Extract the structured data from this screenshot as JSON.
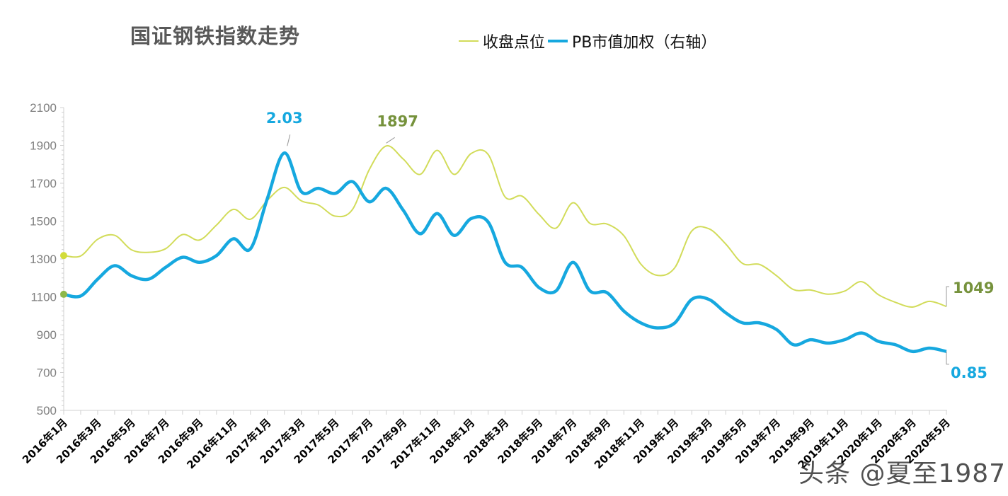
{
  "chart_data": {
    "type": "line",
    "title": "国证钢铁指数走势",
    "legend_position": "top",
    "grid": false,
    "categories": [
      "2016年1月",
      "2016年2月",
      "2016年3月",
      "2016年4月",
      "2016年5月",
      "2016年6月",
      "2016年7月",
      "2016年8月",
      "2016年9月",
      "2016年10月",
      "2016年11月",
      "2016年12月",
      "2017年1月",
      "2017年2月",
      "2017年3月",
      "2017年4月",
      "2017年5月",
      "2017年6月",
      "2017年7月",
      "2017年8月",
      "2017年9月",
      "2017年10月",
      "2017年11月",
      "2017年12月",
      "2018年1月",
      "2018年2月",
      "2018年3月",
      "2018年4月",
      "2018年5月",
      "2018年6月",
      "2018年7月",
      "2018年8月",
      "2018年9月",
      "2018年10月",
      "2018年11月",
      "2018年12月",
      "2019年1月",
      "2019年2月",
      "2019年3月",
      "2019年4月",
      "2019年5月",
      "2019年6月",
      "2019年7月",
      "2019年8月",
      "2019年9月",
      "2019年10月",
      "2019年11月",
      "2019年12月",
      "2020年1月",
      "2020年2月",
      "2020年3月",
      "2020年4月",
      "2020年5月"
    ],
    "x_tick_labels": [
      "2016年1月",
      "2016年3月",
      "2016年5月",
      "2016年7月",
      "2016年9月",
      "2016年11月",
      "2017年1月",
      "2017年3月",
      "2017年5月",
      "2017年7月",
      "2017年9月",
      "2017年11月",
      "2018年1月",
      "2018年3月",
      "2018年5月",
      "2018年7月",
      "2018年9月",
      "2018年11月",
      "2019年1月",
      "2019年3月",
      "2019年5月",
      "2019年7月",
      "2019年9月",
      "2019年11月",
      "2020年1月",
      "2020年3月",
      "2020年5月"
    ],
    "y_left": {
      "ylim": [
        500,
        2100
      ],
      "ticks": [
        500,
        700,
        900,
        1100,
        1300,
        1500,
        1700,
        1900,
        2100
      ]
    },
    "y_right": {
      "ylim": [
        0.5,
        2.3
      ],
      "visible": false
    },
    "series": [
      {
        "name": "收盘点位",
        "axis": "left",
        "color": "#d2dc5a",
        "values": [
          1318,
          1316,
          1404,
          1425,
          1348,
          1335,
          1354,
          1429,
          1400,
          1479,
          1562,
          1510,
          1610,
          1678,
          1607,
          1585,
          1526,
          1560,
          1772,
          1897,
          1828,
          1747,
          1874,
          1747,
          1857,
          1853,
          1628,
          1632,
          1535,
          1463,
          1597,
          1488,
          1485,
          1423,
          1273,
          1213,
          1254,
          1448,
          1460,
          1379,
          1276,
          1271,
          1211,
          1138,
          1136,
          1114,
          1130,
          1180,
          1111,
          1071,
          1046,
          1076,
          1049
        ]
      },
      {
        "name": "PB市值加权（右轴）",
        "axis": "right",
        "color": "#16a8df",
        "values": [
          1.19,
          1.18,
          1.28,
          1.36,
          1.3,
          1.28,
          1.35,
          1.41,
          1.38,
          1.42,
          1.52,
          1.46,
          1.76,
          2.03,
          1.8,
          1.82,
          1.79,
          1.86,
          1.74,
          1.82,
          1.69,
          1.55,
          1.67,
          1.54,
          1.64,
          1.62,
          1.38,
          1.35,
          1.23,
          1.21,
          1.38,
          1.21,
          1.2,
          1.09,
          1.02,
          0.99,
          1.02,
          1.16,
          1.16,
          1.08,
          1.02,
          1.02,
          0.98,
          0.89,
          0.92,
          0.9,
          0.92,
          0.96,
          0.91,
          0.89,
          0.85,
          0.87,
          0.85
        ]
      }
    ],
    "annotations": [
      {
        "text": "2.03",
        "series": 1,
        "index": 13,
        "color": "#16a8df"
      },
      {
        "text": "1897",
        "series": 0,
        "index": 19,
        "color": "#76923c"
      },
      {
        "text": "1049",
        "series": 0,
        "index": 52,
        "color": "#76923c"
      },
      {
        "text": "0.85",
        "series": 1,
        "index": 52,
        "color": "#16a8df"
      }
    ]
  },
  "watermark": "头条 @夏至1987"
}
